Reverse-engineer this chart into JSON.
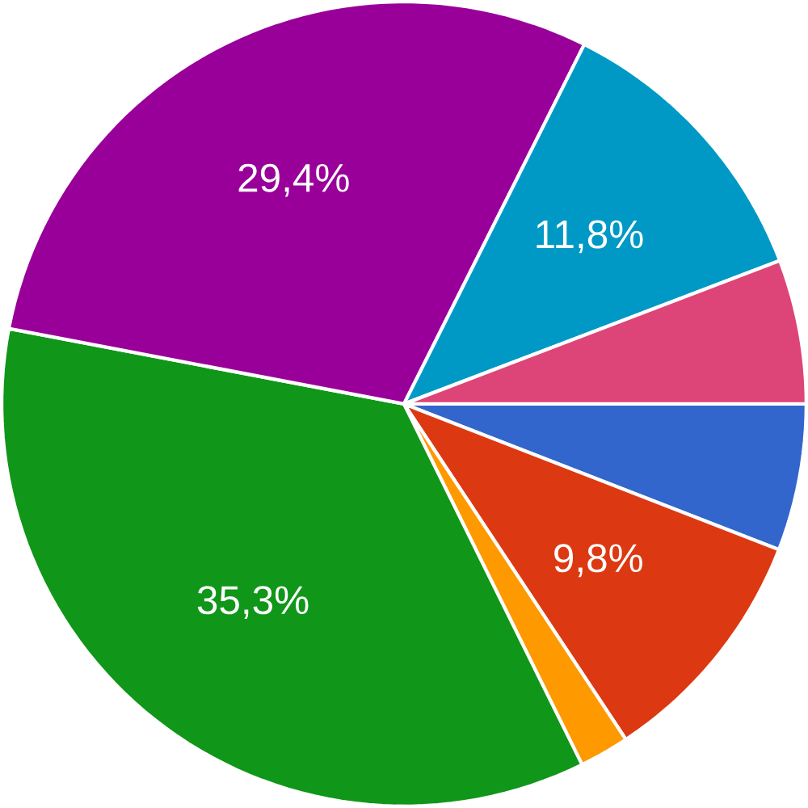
{
  "chart_data": {
    "type": "pie",
    "categories": [
      null,
      null,
      null,
      null,
      null,
      null,
      null
    ],
    "values": [
      5.9,
      9.8,
      2.0,
      35.3,
      29.4,
      11.8,
      5.8
    ],
    "colors": [
      "#3366cc",
      "#dc3912",
      "#ff9900",
      "#109618",
      "#990099",
      "#0099c6",
      "#dd4477"
    ],
    "value_labels": [
      null,
      "9,8%",
      null,
      "35,3%",
      "29,4%",
      "11,8%",
      null
    ]
  }
}
